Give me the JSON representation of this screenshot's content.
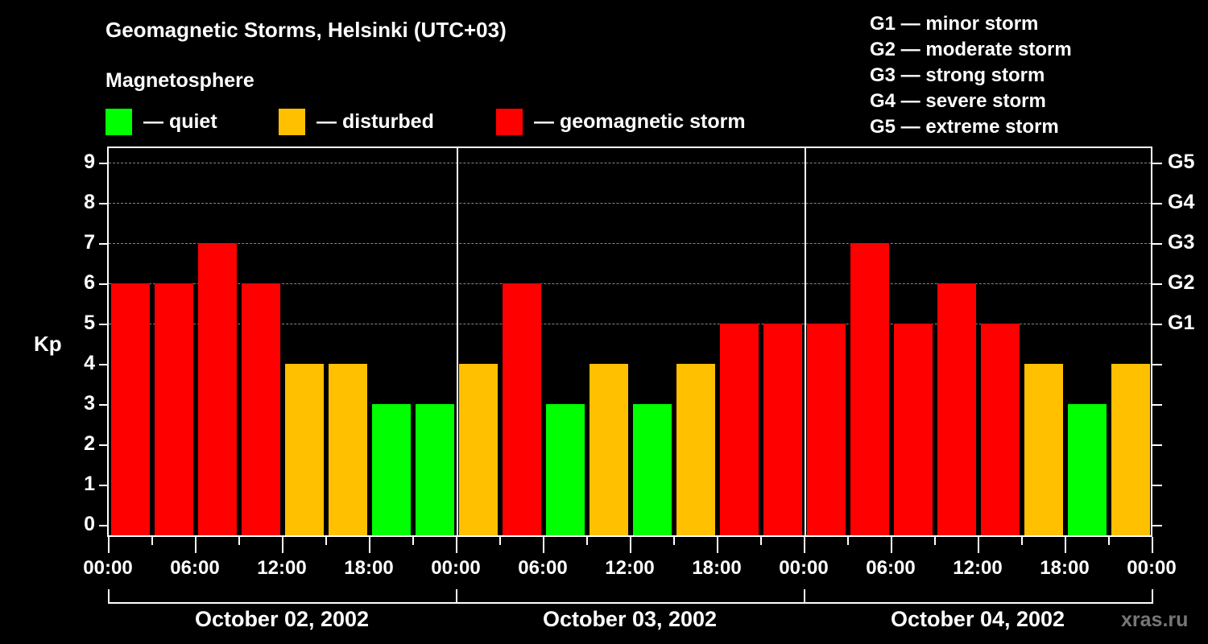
{
  "header": {
    "title": "Geomagnetic Storms, Helsinki (UTC+03)",
    "subtitle": "Magnetosphere"
  },
  "legend": {
    "items": [
      {
        "label": "— quiet",
        "color": "#00ff00"
      },
      {
        "label": "— disturbed",
        "color": "#ffc000"
      },
      {
        "label": "— geomagnetic storm",
        "color": "#ff0000"
      }
    ]
  },
  "g_legend": [
    "G1 — minor storm",
    "G2 — moderate storm",
    "G3 — strong storm",
    "G4 — severe storm",
    "G5 — extreme storm"
  ],
  "watermark": "xras.ru",
  "chart_data": {
    "type": "bar",
    "title": "Geomagnetic Storms, Helsinki (UTC+03)",
    "xlabel": "",
    "ylabel": "Kp",
    "ylim": [
      0,
      9
    ],
    "yticks": [
      0,
      1,
      2,
      3,
      4,
      5,
      6,
      7,
      8,
      9
    ],
    "right_axis_ticks": {
      "5": "G1",
      "6": "G2",
      "7": "G3",
      "8": "G4",
      "9": "G5"
    },
    "grid": "dashed horizontal at Kp 5-9",
    "x_tick_labels": [
      "00:00",
      "06:00",
      "12:00",
      "18:00",
      "00:00",
      "06:00",
      "12:00",
      "18:00",
      "00:00",
      "06:00",
      "12:00",
      "18:00",
      "00:00"
    ],
    "days": [
      "October 02, 2002",
      "October 03, 2002",
      "October 04, 2002"
    ],
    "interval_hours": 3,
    "categories": [
      "10-02 00:00",
      "10-02 03:00",
      "10-02 06:00",
      "10-02 09:00",
      "10-02 12:00",
      "10-02 15:00",
      "10-02 18:00",
      "10-02 21:00",
      "10-03 00:00",
      "10-03 03:00",
      "10-03 06:00",
      "10-03 09:00",
      "10-03 12:00",
      "10-03 15:00",
      "10-03 18:00",
      "10-03 21:00",
      "10-04 00:00",
      "10-04 03:00",
      "10-04 06:00",
      "10-04 09:00",
      "10-04 12:00",
      "10-04 15:00",
      "10-04 18:00",
      "10-04 21:00"
    ],
    "values": [
      6,
      6,
      7,
      6,
      4,
      4,
      3,
      3,
      4,
      6,
      3,
      4,
      3,
      4,
      5,
      5,
      5,
      7,
      5,
      6,
      5,
      4,
      3,
      4
    ],
    "color_rule": {
      "quiet (<=3)": "#00ff00",
      "disturbed (4)": "#ffc000",
      "storm (>=5)": "#ff0000"
    }
  }
}
